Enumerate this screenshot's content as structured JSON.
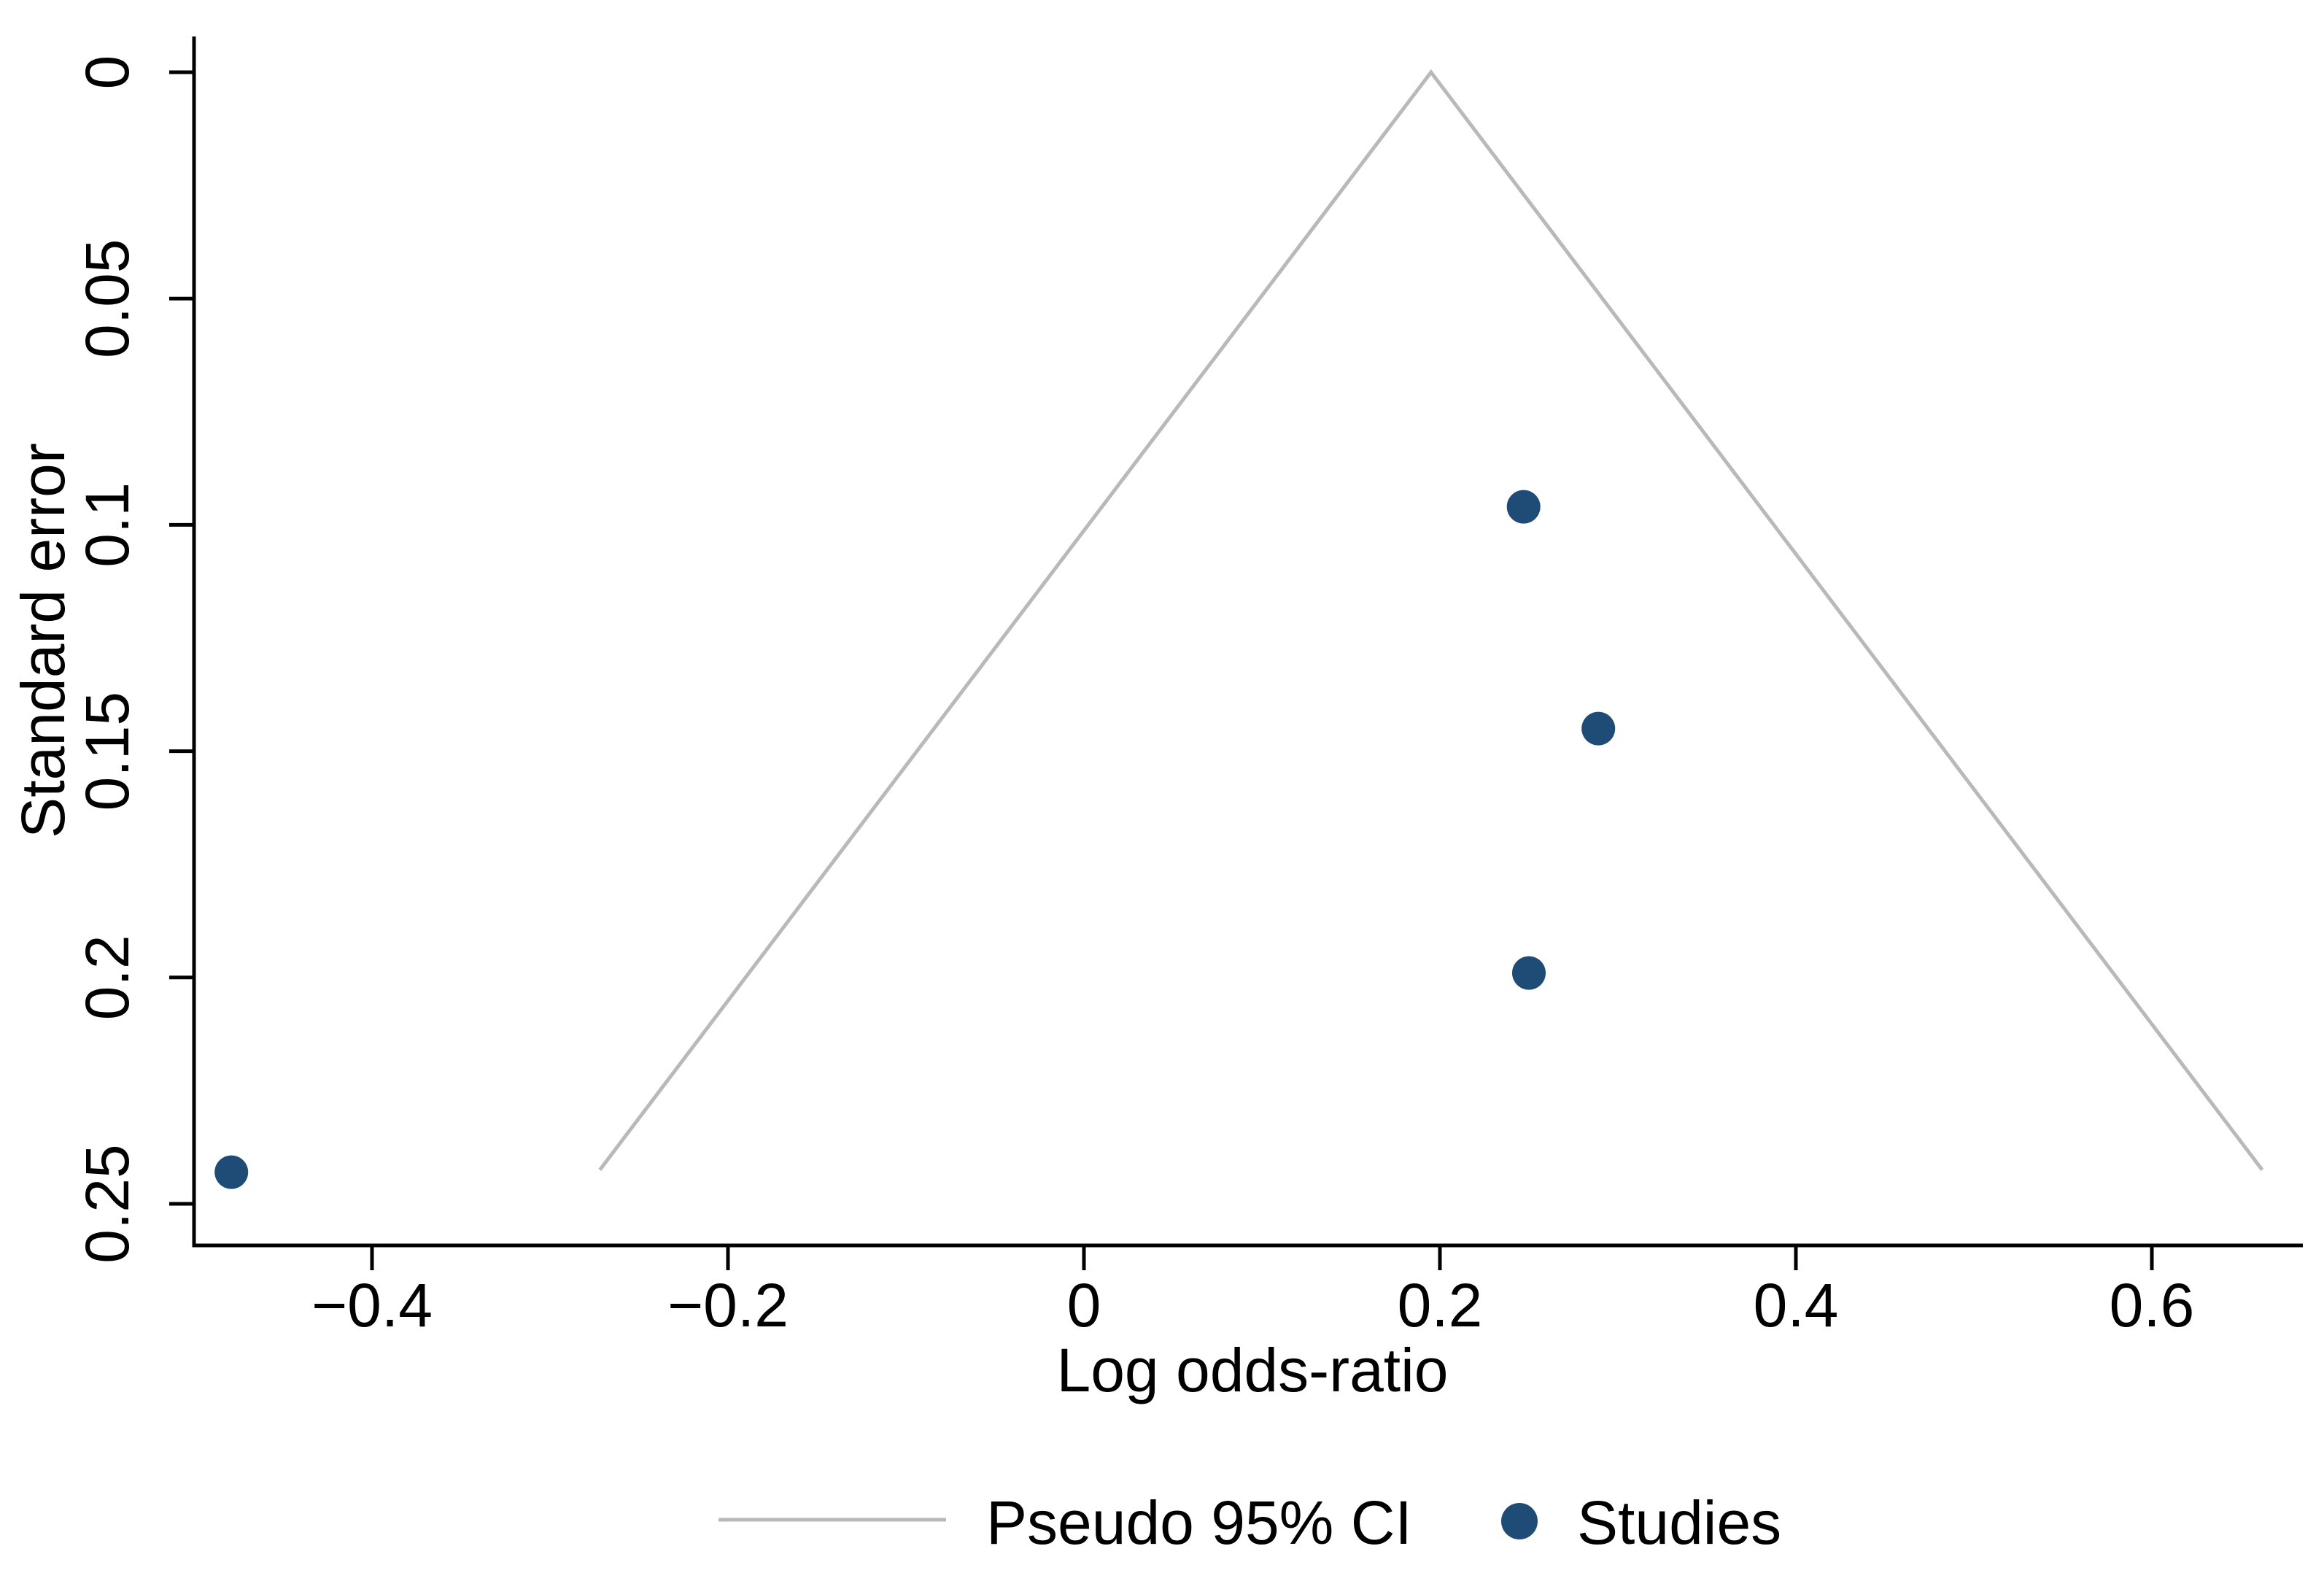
{
  "figure": {
    "background_color": "#ffffff",
    "axis_color": "#000000",
    "y_axis": {
      "title": "Standard error",
      "tick_labels": [
        "0",
        "0.05",
        "0.1",
        "0.15",
        "0.2",
        "0.25"
      ],
      "tick_values": [
        0,
        0.05,
        0.1,
        0.15,
        0.2,
        0.25
      ],
      "direction": "inverted (0 at top)",
      "label_rotation": "90 degrees, reading bottom to top"
    },
    "x_axis": {
      "title": "Log odds-ratio",
      "tick_labels": [
        "−0.4",
        "−0.2",
        "0",
        "0.2",
        "0.4",
        "0.6"
      ],
      "tick_values": [
        -0.4,
        -0.2,
        0,
        0.2,
        0.4,
        0.6
      ]
    },
    "legend": [
      {
        "label": "Pseudo 95% CI",
        "type": "line",
        "color": "#b9b9b9"
      },
      {
        "label": "Studies",
        "type": "marker",
        "color": "#1e4c76"
      }
    ]
  },
  "chart_data": {
    "type": "scatter",
    "subtype": "funnel-plot",
    "title": "",
    "xlabel": "Log odds-ratio",
    "ylabel": "Standard error",
    "xlim": [
      -0.52,
      0.69
    ],
    "ylim": [
      0,
      0.25
    ],
    "y_inverted": true,
    "grid": false,
    "legend_position": "bottom-center",
    "series": [
      {
        "name": "Studies",
        "type": "scatter",
        "marker": "circle",
        "color": "#1e4c76",
        "points": [
          {
            "x": 0.247,
            "se": 0.096
          },
          {
            "x": 0.289,
            "se": 0.145
          },
          {
            "x": 0.25,
            "se": 0.199
          },
          {
            "x": -0.479,
            "se": 0.243
          }
        ]
      },
      {
        "name": "Pseudo 95% CI",
        "type": "line",
        "color": "#b9b9b9",
        "description": "funnel bounds, apex at pooled estimate with SE 0",
        "vertices": [
          {
            "x": -0.272,
            "se": 0.2425
          },
          {
            "x": 0.195,
            "se": 0
          },
          {
            "x": 0.662,
            "se": 0.2425
          }
        ]
      }
    ]
  }
}
